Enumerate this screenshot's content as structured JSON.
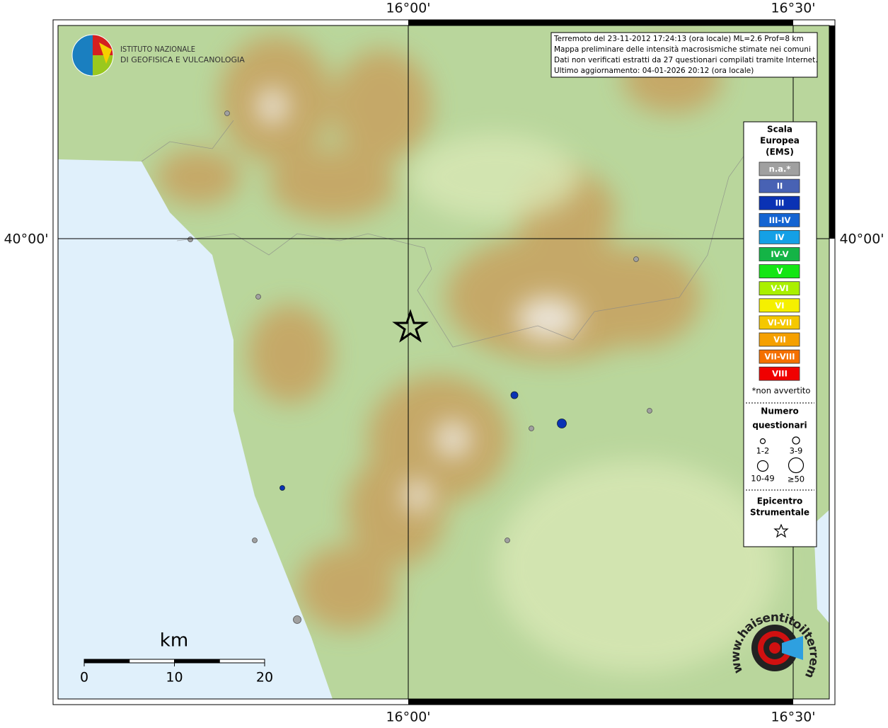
{
  "map": {
    "lon_labels": [
      "16°00'",
      "16°30'"
    ],
    "lat_labels": [
      "40°00'"
    ]
  },
  "logo": {
    "line1": "ISTITUTO NAZIONALE",
    "line2": "DI GEOFISICA E VULCANOLOGIA"
  },
  "info": {
    "lines": [
      "Terremoto del 23-11-2012 17:24:13 (ora locale) ML=2.6 Prof=8 km",
      "Mappa preliminare delle intensità macrosismiche stimate nei comuni",
      "Dati non verificati estratti da 27 questionari compilati tramite Internet.",
      "Ultimo aggiornamento: 04-01-2026 20:12 (ora locale)"
    ]
  },
  "legend": {
    "title": [
      "Scala",
      "Europea",
      "(EMS)"
    ],
    "items": [
      {
        "label": "n.a.*",
        "color": "#a0a0a0"
      },
      {
        "label": "II",
        "color": "#4862b4"
      },
      {
        "label": "III",
        "color": "#0a32b4"
      },
      {
        "label": "III-IV",
        "color": "#1464d2"
      },
      {
        "label": "IV",
        "color": "#14a0e6"
      },
      {
        "label": "IV-V",
        "color": "#14b446"
      },
      {
        "label": "V",
        "color": "#14e614"
      },
      {
        "label": "V-VI",
        "color": "#aaf000"
      },
      {
        "label": "VI",
        "color": "#f5f000"
      },
      {
        "label": "VI-VII",
        "color": "#f5c800"
      },
      {
        "label": "VII",
        "color": "#f5a000"
      },
      {
        "label": "VII-VIII",
        "color": "#f57000"
      },
      {
        "label": "VIII",
        "color": "#f00000"
      }
    ],
    "footnote": "*non avvertito",
    "count_title": [
      "Numero",
      "questionari"
    ],
    "count_classes": [
      "1-2",
      "3-9",
      "10-49",
      "≥50"
    ],
    "epicenter_title": [
      "Epicentro",
      "Strumentale"
    ]
  },
  "scale_bar": {
    "unit": "km",
    "ticks": [
      0,
      10,
      20
    ]
  },
  "site": "www.haisentitoilterremoto.it"
}
